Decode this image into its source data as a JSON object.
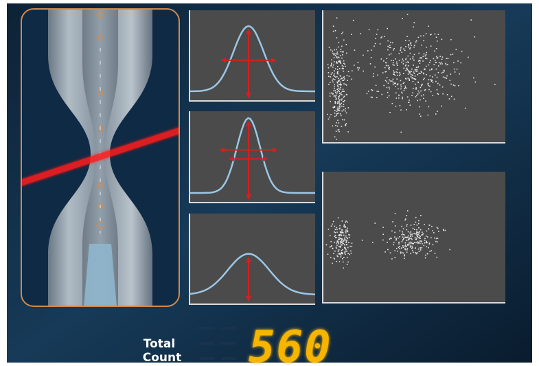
{
  "counter": {
    "label_lines": [
      "Total",
      "Count"
    ],
    "value": "560"
  }
}
